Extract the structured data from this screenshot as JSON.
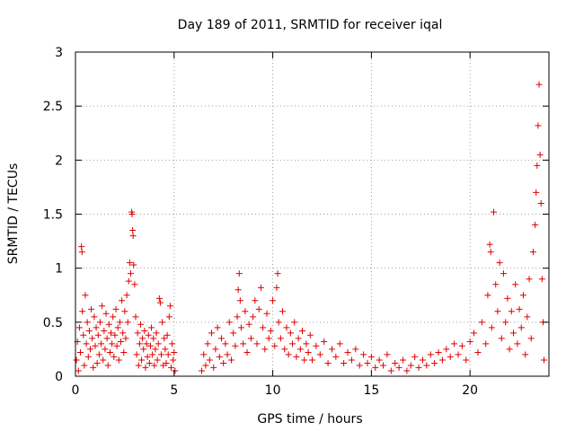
{
  "chart_data": {
    "type": "scatter",
    "title": "Day 189 of 2011, SRMTID for receiver iqal",
    "xlabel": "GPS time / hours",
    "ylabel": "SRMTID / TECUs",
    "xlim": [
      0,
      24
    ],
    "ylim": [
      0,
      3
    ],
    "xticks": [
      0,
      5,
      10,
      15,
      20
    ],
    "yticks": [
      0,
      0.5,
      1,
      1.5,
      2,
      2.5,
      3
    ],
    "xtick_labels": [
      "0",
      "5",
      "10",
      "15",
      "20"
    ],
    "ytick_labels": [
      "0",
      "0.5",
      "1",
      "1.5",
      "2",
      "2.5",
      "3"
    ],
    "grid": true,
    "marker": "+",
    "color": "#e00000",
    "series": [
      {
        "name": "SRMTID",
        "points": [
          [
            0.05,
            0.15
          ],
          [
            0.1,
            0.32
          ],
          [
            0.15,
            0.05
          ],
          [
            0.2,
            0.45
          ],
          [
            0.25,
            0.22
          ],
          [
            0.3,
            1.2
          ],
          [
            0.33,
            1.15
          ],
          [
            0.35,
            0.6
          ],
          [
            0.4,
            0.38
          ],
          [
            0.45,
            0.1
          ],
          [
            0.5,
            0.75
          ],
          [
            0.55,
            0.3
          ],
          [
            0.6,
            0.5
          ],
          [
            0.65,
            0.18
          ],
          [
            0.7,
            0.42
          ],
          [
            0.75,
            0.25
          ],
          [
            0.8,
            0.62
          ],
          [
            0.85,
            0.35
          ],
          [
            0.9,
            0.08
          ],
          [
            0.95,
            0.55
          ],
          [
            1.0,
            0.28
          ],
          [
            1.05,
            0.45
          ],
          [
            1.1,
            0.12
          ],
          [
            1.15,
            0.38
          ],
          [
            1.2,
            0.2
          ],
          [
            1.25,
            0.5
          ],
          [
            1.3,
            0.3
          ],
          [
            1.35,
            0.65
          ],
          [
            1.4,
            0.15
          ],
          [
            1.45,
            0.42
          ],
          [
            1.5,
            0.25
          ],
          [
            1.55,
            0.58
          ],
          [
            1.6,
            0.35
          ],
          [
            1.65,
            0.1
          ],
          [
            1.7,
            0.48
          ],
          [
            1.75,
            0.22
          ],
          [
            1.8,
            0.4
          ],
          [
            1.85,
            0.3
          ],
          [
            1.9,
            0.55
          ],
          [
            1.95,
            0.18
          ],
          [
            2.0,
            0.38
          ],
          [
            2.05,
            0.62
          ],
          [
            2.1,
            0.28
          ],
          [
            2.15,
            0.45
          ],
          [
            2.2,
            0.15
          ],
          [
            2.25,
            0.5
          ],
          [
            2.3,
            0.32
          ],
          [
            2.35,
            0.7
          ],
          [
            2.4,
            0.4
          ],
          [
            2.45,
            0.22
          ],
          [
            2.5,
            0.6
          ],
          [
            2.55,
            0.35
          ],
          [
            2.6,
            0.75
          ],
          [
            2.65,
            0.5
          ],
          [
            2.7,
            0.88
          ],
          [
            2.75,
            1.05
          ],
          [
            2.8,
            0.95
          ],
          [
            2.85,
            1.52
          ],
          [
            2.87,
            1.5
          ],
          [
            2.9,
            1.35
          ],
          [
            2.92,
            1.3
          ],
          [
            2.95,
            1.03
          ],
          [
            3.0,
            0.85
          ],
          [
            3.05,
            0.55
          ],
          [
            3.1,
            0.2
          ],
          [
            3.15,
            0.4
          ],
          [
            3.2,
            0.1
          ],
          [
            3.25,
            0.3
          ],
          [
            3.3,
            0.48
          ],
          [
            3.35,
            0.15
          ],
          [
            3.4,
            0.35
          ],
          [
            3.45,
            0.25
          ],
          [
            3.5,
            0.42
          ],
          [
            3.55,
            0.08
          ],
          [
            3.6,
            0.3
          ],
          [
            3.65,
            0.18
          ],
          [
            3.7,
            0.38
          ],
          [
            3.75,
            0.12
          ],
          [
            3.8,
            0.28
          ],
          [
            3.85,
            0.45
          ],
          [
            3.9,
            0.2
          ],
          [
            3.95,
            0.35
          ],
          [
            4.0,
            0.1
          ],
          [
            4.05,
            0.25
          ],
          [
            4.1,
            0.4
          ],
          [
            4.15,
            0.15
          ],
          [
            4.2,
            0.3
          ],
          [
            4.25,
            0.72
          ],
          [
            4.3,
            0.68
          ],
          [
            4.35,
            0.2
          ],
          [
            4.4,
            0.5
          ],
          [
            4.45,
            0.1
          ],
          [
            4.5,
            0.35
          ],
          [
            4.55,
            0.25
          ],
          [
            4.6,
            0.12
          ],
          [
            4.65,
            0.38
          ],
          [
            4.7,
            0.2
          ],
          [
            4.75,
            0.55
          ],
          [
            4.8,
            0.65
          ],
          [
            4.85,
            0.08
          ],
          [
            4.9,
            0.3
          ],
          [
            4.95,
            0.15
          ],
          [
            5.0,
            0.22
          ],
          [
            5.05,
            0.05
          ],
          [
            6.4,
            0.05
          ],
          [
            6.5,
            0.2
          ],
          [
            6.6,
            0.1
          ],
          [
            6.7,
            0.3
          ],
          [
            6.8,
            0.15
          ],
          [
            6.9,
            0.4
          ],
          [
            7.0,
            0.08
          ],
          [
            7.1,
            0.25
          ],
          [
            7.2,
            0.45
          ],
          [
            7.3,
            0.18
          ],
          [
            7.4,
            0.35
          ],
          [
            7.5,
            0.12
          ],
          [
            7.6,
            0.3
          ],
          [
            7.7,
            0.2
          ],
          [
            7.8,
            0.5
          ],
          [
            7.9,
            0.15
          ],
          [
            8.0,
            0.4
          ],
          [
            8.1,
            0.28
          ],
          [
            8.2,
            0.55
          ],
          [
            8.25,
            0.8
          ],
          [
            8.3,
            0.95
          ],
          [
            8.35,
            0.7
          ],
          [
            8.4,
            0.45
          ],
          [
            8.5,
            0.3
          ],
          [
            8.6,
            0.6
          ],
          [
            8.7,
            0.22
          ],
          [
            8.8,
            0.48
          ],
          [
            8.9,
            0.35
          ],
          [
            9.0,
            0.55
          ],
          [
            9.1,
            0.7
          ],
          [
            9.2,
            0.3
          ],
          [
            9.3,
            0.62
          ],
          [
            9.4,
            0.82
          ],
          [
            9.5,
            0.45
          ],
          [
            9.6,
            0.25
          ],
          [
            9.7,
            0.58
          ],
          [
            9.8,
            0.35
          ],
          [
            9.9,
            0.42
          ],
          [
            10.0,
            0.7
          ],
          [
            10.1,
            0.28
          ],
          [
            10.2,
            0.82
          ],
          [
            10.25,
            0.95
          ],
          [
            10.3,
            0.5
          ],
          [
            10.4,
            0.35
          ],
          [
            10.5,
            0.6
          ],
          [
            10.6,
            0.25
          ],
          [
            10.7,
            0.45
          ],
          [
            10.8,
            0.2
          ],
          [
            10.9,
            0.4
          ],
          [
            11.0,
            0.3
          ],
          [
            11.1,
            0.5
          ],
          [
            11.2,
            0.18
          ],
          [
            11.3,
            0.35
          ],
          [
            11.4,
            0.25
          ],
          [
            11.5,
            0.42
          ],
          [
            11.6,
            0.15
          ],
          [
            11.7,
            0.3
          ],
          [
            11.8,
            0.22
          ],
          [
            11.9,
            0.38
          ],
          [
            12.0,
            0.15
          ],
          [
            12.2,
            0.28
          ],
          [
            12.4,
            0.2
          ],
          [
            12.6,
            0.32
          ],
          [
            12.8,
            0.12
          ],
          [
            13.0,
            0.25
          ],
          [
            13.2,
            0.18
          ],
          [
            13.4,
            0.3
          ],
          [
            13.6,
            0.12
          ],
          [
            13.8,
            0.22
          ],
          [
            14.0,
            0.15
          ],
          [
            14.2,
            0.25
          ],
          [
            14.4,
            0.1
          ],
          [
            14.6,
            0.2
          ],
          [
            14.8,
            0.12
          ],
          [
            15.0,
            0.18
          ],
          [
            15.2,
            0.08
          ],
          [
            15.4,
            0.15
          ],
          [
            15.6,
            0.1
          ],
          [
            15.8,
            0.2
          ],
          [
            16.0,
            0.05
          ],
          [
            16.2,
            0.12
          ],
          [
            16.4,
            0.08
          ],
          [
            16.6,
            0.15
          ],
          [
            16.8,
            0.05
          ],
          [
            17.0,
            0.1
          ],
          [
            17.2,
            0.18
          ],
          [
            17.4,
            0.08
          ],
          [
            17.6,
            0.15
          ],
          [
            17.8,
            0.1
          ],
          [
            18.0,
            0.2
          ],
          [
            18.2,
            0.12
          ],
          [
            18.4,
            0.22
          ],
          [
            18.6,
            0.15
          ],
          [
            18.8,
            0.25
          ],
          [
            19.0,
            0.18
          ],
          [
            19.2,
            0.3
          ],
          [
            19.4,
            0.2
          ],
          [
            19.6,
            0.28
          ],
          [
            19.8,
            0.15
          ],
          [
            20.0,
            0.32
          ],
          [
            20.2,
            0.4
          ],
          [
            20.4,
            0.22
          ],
          [
            20.6,
            0.5
          ],
          [
            20.8,
            0.3
          ],
          [
            20.9,
            0.75
          ],
          [
            21.0,
            1.22
          ],
          [
            21.05,
            1.15
          ],
          [
            21.1,
            0.45
          ],
          [
            21.2,
            1.52
          ],
          [
            21.3,
            0.85
          ],
          [
            21.4,
            0.6
          ],
          [
            21.5,
            1.05
          ],
          [
            21.6,
            0.35
          ],
          [
            21.7,
            0.95
          ],
          [
            21.8,
            0.5
          ],
          [
            21.9,
            0.72
          ],
          [
            22.0,
            0.25
          ],
          [
            22.1,
            0.6
          ],
          [
            22.2,
            0.4
          ],
          [
            22.3,
            0.85
          ],
          [
            22.4,
            0.3
          ],
          [
            22.5,
            0.62
          ],
          [
            22.6,
            0.45
          ],
          [
            22.7,
            0.75
          ],
          [
            22.8,
            0.2
          ],
          [
            22.9,
            0.55
          ],
          [
            23.0,
            0.9
          ],
          [
            23.1,
            0.35
          ],
          [
            23.2,
            1.15
          ],
          [
            23.3,
            1.4
          ],
          [
            23.35,
            1.7
          ],
          [
            23.4,
            1.95
          ],
          [
            23.45,
            2.32
          ],
          [
            23.5,
            2.7
          ],
          [
            23.55,
            2.05
          ],
          [
            23.6,
            1.6
          ],
          [
            23.65,
            0.9
          ],
          [
            23.7,
            0.5
          ],
          [
            23.75,
            0.15
          ]
        ]
      }
    ]
  }
}
